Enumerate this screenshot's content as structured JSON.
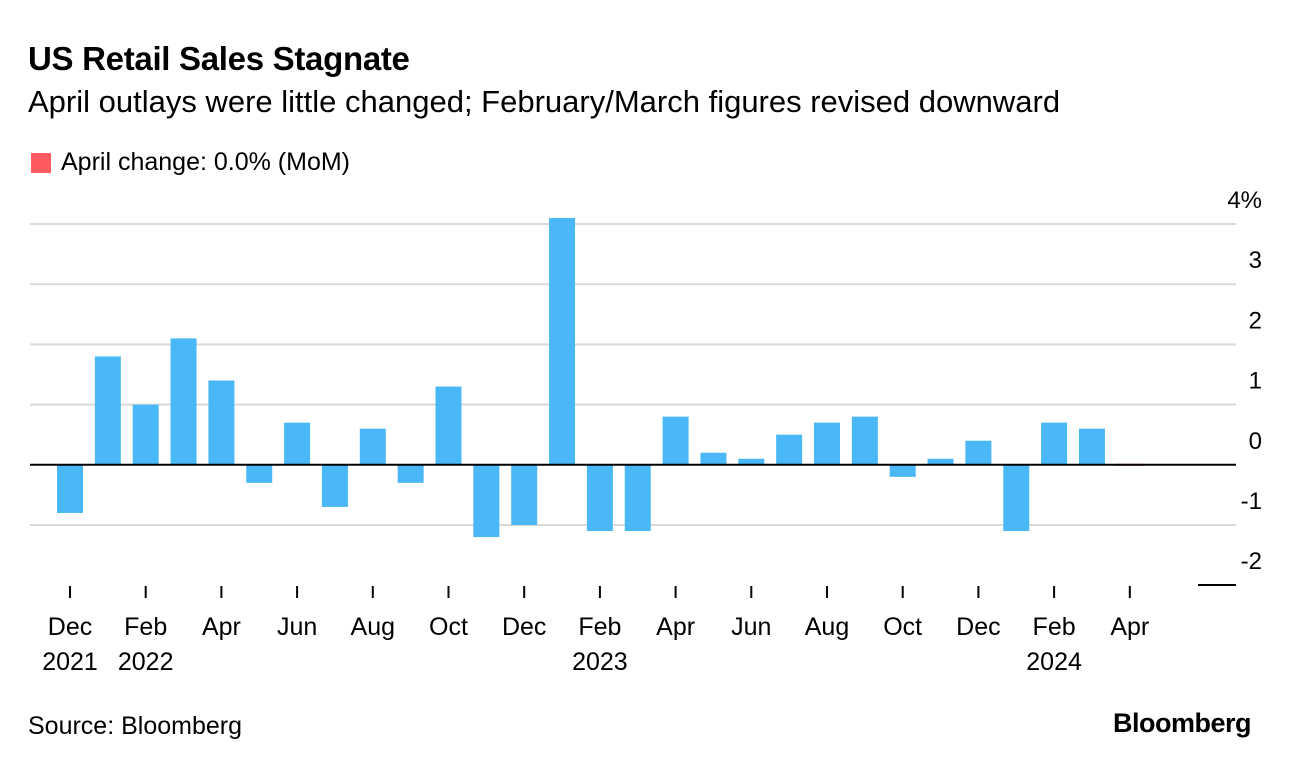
{
  "title": "US Retail Sales Stagnate",
  "subtitle": "April outlays were little changed; February/March figures revised downward",
  "legend": {
    "label": "April change: 0.0% (MoM)",
    "color": "#ff5a5f"
  },
  "source": "Source: Bloomberg",
  "brand": "Bloomberg",
  "colors": {
    "bar": "#4ab8f7",
    "highlight": "#ff5a5f",
    "grid": "#d9d9d9",
    "zero": "#000000"
  },
  "chart_data": {
    "type": "bar",
    "categories": [
      "Dec 2021",
      "Jan 2022",
      "Feb 2022",
      "Mar 2022",
      "Apr 2022",
      "May 2022",
      "Jun 2022",
      "Jul 2022",
      "Aug 2022",
      "Sep 2022",
      "Oct 2022",
      "Nov 2022",
      "Dec 2022",
      "Jan 2023",
      "Feb 2023",
      "Mar 2023",
      "Apr 2023",
      "May 2023",
      "Jun 2023",
      "Jul 2023",
      "Aug 2023",
      "Sep 2023",
      "Oct 2023",
      "Nov 2023",
      "Dec 2023",
      "Jan 2024",
      "Feb 2024",
      "Mar 2024",
      "Apr 2024"
    ],
    "values": [
      -0.8,
      1.8,
      1.0,
      2.1,
      1.4,
      -0.3,
      0.7,
      -0.7,
      0.6,
      -0.3,
      1.3,
      -1.2,
      -1.0,
      4.1,
      -1.1,
      -1.1,
      0.8,
      0.2,
      0.1,
      0.5,
      0.7,
      0.8,
      -0.2,
      0.1,
      0.4,
      -1.1,
      0.7,
      0.6,
      0.0
    ],
    "highlight_index": 28,
    "ylim": [
      -2,
      4
    ],
    "yticks": [
      4,
      3,
      2,
      1,
      0,
      -1,
      -2
    ],
    "ytick_labels": [
      "4%",
      "3",
      "2",
      "1",
      "0",
      "-1",
      "-2"
    ],
    "xticks": [
      {
        "index": 0,
        "label": "Dec",
        "year": "2021"
      },
      {
        "index": 2,
        "label": "Feb",
        "year": "2022"
      },
      {
        "index": 4,
        "label": "Apr",
        "year": ""
      },
      {
        "index": 6,
        "label": "Jun",
        "year": ""
      },
      {
        "index": 8,
        "label": "Aug",
        "year": ""
      },
      {
        "index": 10,
        "label": "Oct",
        "year": ""
      },
      {
        "index": 12,
        "label": "Dec",
        "year": ""
      },
      {
        "index": 14,
        "label": "Feb",
        "year": "2023"
      },
      {
        "index": 16,
        "label": "Apr",
        "year": ""
      },
      {
        "index": 18,
        "label": "Jun",
        "year": ""
      },
      {
        "index": 20,
        "label": "Aug",
        "year": ""
      },
      {
        "index": 22,
        "label": "Oct",
        "year": ""
      },
      {
        "index": 24,
        "label": "Dec",
        "year": ""
      },
      {
        "index": 26,
        "label": "Feb",
        "year": "2024"
      },
      {
        "index": 28,
        "label": "Apr",
        "year": ""
      }
    ],
    "grid": true,
    "legend_position": "top-left"
  }
}
